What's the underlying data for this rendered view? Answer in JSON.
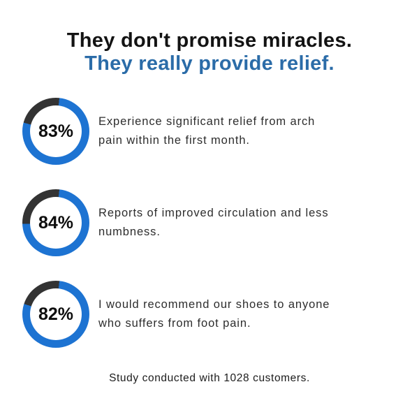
{
  "title": {
    "line1": "They don't promise miracles.",
    "line2": "They really provide relief."
  },
  "colors": {
    "title_black": "#131313",
    "title_blue": "#2b6ca8",
    "ring_blue": "#1d73d2",
    "ring_dark": "#333333",
    "body_text": "#2d2d2d",
    "background": "#ffffff"
  },
  "stats": [
    {
      "value": "83%",
      "lines": [
        "Experience significant relief from arch",
        "pain within the first month."
      ],
      "text": "Experience significant relief from arch pain within the first month.",
      "ring": {
        "start_deg": 6,
        "dark_arc_deg": 81
      }
    },
    {
      "value": "84%",
      "lines": [
        "Reports of improved circulation and less",
        "numbness."
      ],
      "text": "Reports of improved circulation and less numbness.",
      "ring": {
        "start_deg": 6,
        "dark_arc_deg": 98
      }
    },
    {
      "value": "82%",
      "lines": [
        "I would recommend our shoes to anyone",
        "who suffers from foot pain."
      ],
      "text": "I would recommend our shoes to anyone who suffers from foot pain.",
      "ring": {
        "start_deg": 6,
        "dark_arc_deg": 78
      }
    }
  ],
  "footer": {
    "note": "Study conducted with 1028 customers."
  },
  "chart_data": {
    "type": "pie",
    "subtype": "donut-progress-rings",
    "title": "They don't promise miracles. They really provide relief.",
    "units": "%",
    "items": [
      {
        "label": "Experience significant relief from arch pain within the first month.",
        "value": 83
      },
      {
        "label": "Reports of improved circulation and less numbness.",
        "value": 84
      },
      {
        "label": "I would recommend our shoes to anyone who suffers from foot pain.",
        "value": 82
      }
    ],
    "note": "Study conducted with 1028 customers.",
    "colors": {
      "filled": "#1d73d2",
      "remainder": "#333333"
    },
    "layout": "three stacked donut rings on left, description text right of each ring, note centered at bottom"
  }
}
